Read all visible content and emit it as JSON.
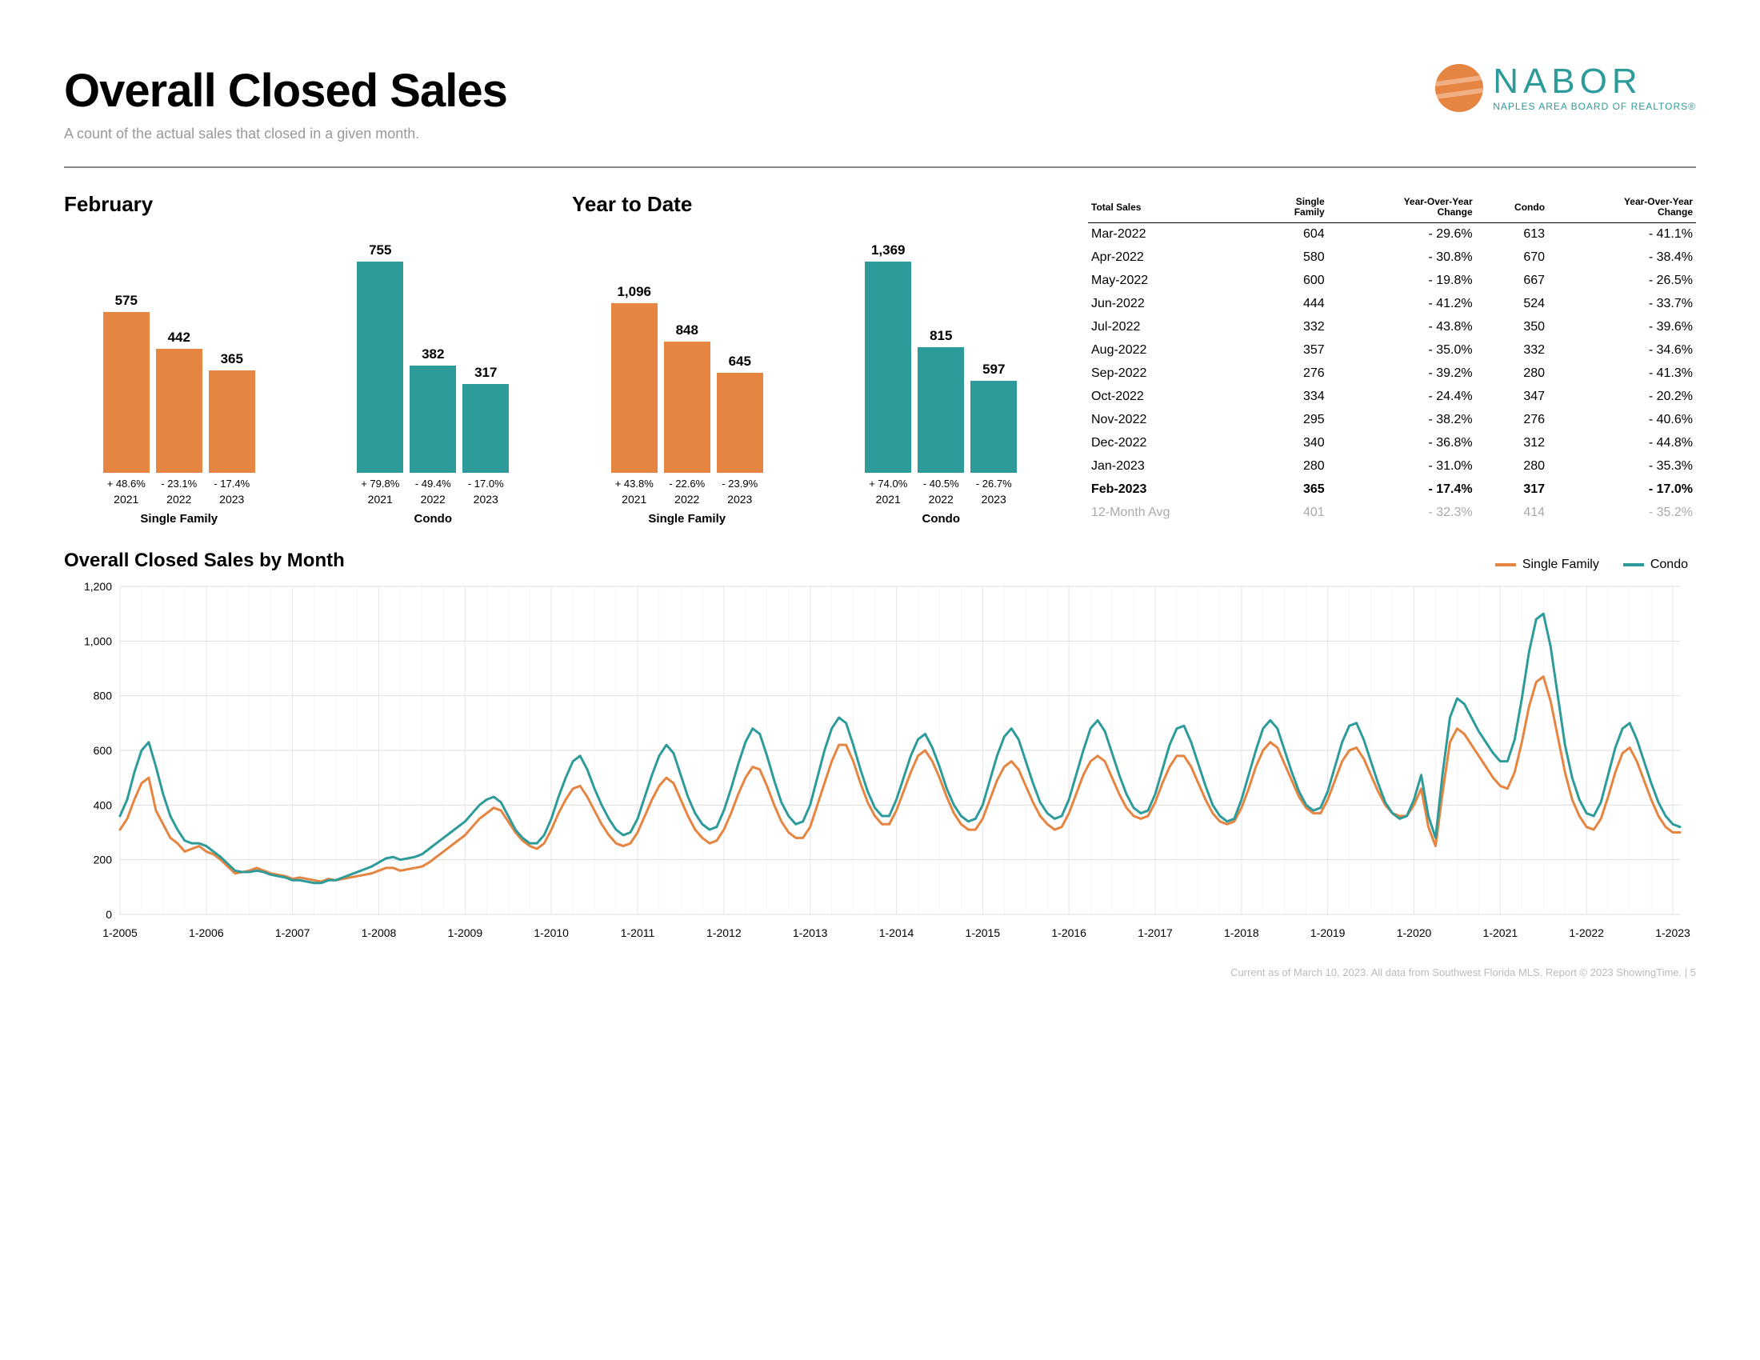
{
  "header": {
    "title": "Overall Closed Sales",
    "subtitle": "A count of the actual sales that closed in a given month.",
    "brand": "NABOR",
    "brand_sub": "NAPLES AREA BOARD OF REALTORS®",
    "brand_color": "#2E9B9B",
    "logo_color": "#E68541"
  },
  "colors": {
    "single_family": "#E68541",
    "condo": "#2E9B9B",
    "grid": "#dddddd",
    "text": "#000000"
  },
  "bar_panels": [
    {
      "title": "February",
      "max": 800,
      "groups": [
        {
          "label": "Single Family",
          "color": "#E68541",
          "bars": [
            {
              "year": "2021",
              "value": 575,
              "pct": "+ 48.6%"
            },
            {
              "year": "2022",
              "value": 442,
              "pct": "- 23.1%"
            },
            {
              "year": "2023",
              "value": 365,
              "pct": "- 17.4%"
            }
          ]
        },
        {
          "label": "Condo",
          "color": "#2E9B9B",
          "bars": [
            {
              "year": "2021",
              "value": 755,
              "pct": "+ 79.8%"
            },
            {
              "year": "2022",
              "value": 382,
              "pct": "- 49.4%"
            },
            {
              "year": "2023",
              "value": 317,
              "pct": "- 17.0%"
            }
          ]
        }
      ]
    },
    {
      "title": "Year to Date",
      "max": 1450,
      "groups": [
        {
          "label": "Single Family",
          "color": "#E68541",
          "bars": [
            {
              "year": "2021",
              "value": 1096,
              "pct": "+ 43.8%"
            },
            {
              "year": "2022",
              "value": 848,
              "pct": "- 22.6%"
            },
            {
              "year": "2023",
              "value": 645,
              "pct": "- 23.9%"
            }
          ]
        },
        {
          "label": "Condo",
          "color": "#2E9B9B",
          "bars": [
            {
              "year": "2021",
              "value": 1369,
              "pct": "+ 74.0%"
            },
            {
              "year": "2022",
              "value": 815,
              "pct": "- 40.5%"
            },
            {
              "year": "2023",
              "value": 597,
              "pct": "- 26.7%"
            }
          ]
        }
      ]
    }
  ],
  "table": {
    "headers": [
      "Total Sales",
      "Single\nFamily",
      "Year-Over-Year\nChange",
      "Condo",
      "Year-Over-Year\nChange"
    ],
    "rows": [
      [
        "Mar-2022",
        "604",
        "- 29.6%",
        "613",
        "- 41.1%"
      ],
      [
        "Apr-2022",
        "580",
        "- 30.8%",
        "670",
        "- 38.4%"
      ],
      [
        "May-2022",
        "600",
        "- 19.8%",
        "667",
        "- 26.5%"
      ],
      [
        "Jun-2022",
        "444",
        "- 41.2%",
        "524",
        "- 33.7%"
      ],
      [
        "Jul-2022",
        "332",
        "- 43.8%",
        "350",
        "- 39.6%"
      ],
      [
        "Aug-2022",
        "357",
        "- 35.0%",
        "332",
        "- 34.6%"
      ],
      [
        "Sep-2022",
        "276",
        "- 39.2%",
        "280",
        "- 41.3%"
      ],
      [
        "Oct-2022",
        "334",
        "- 24.4%",
        "347",
        "- 20.2%"
      ],
      [
        "Nov-2022",
        "295",
        "- 38.2%",
        "276",
        "- 40.6%"
      ],
      [
        "Dec-2022",
        "340",
        "- 36.8%",
        "312",
        "- 44.8%"
      ],
      [
        "Jan-2023",
        "280",
        "- 31.0%",
        "280",
        "- 35.3%"
      ]
    ],
    "bold_row": [
      "Feb-2023",
      "365",
      "- 17.4%",
      "317",
      "- 17.0%"
    ],
    "avg_row": [
      "12-Month Avg",
      "401",
      "- 32.3%",
      "414",
      "- 35.2%"
    ]
  },
  "line_chart": {
    "title": "Overall Closed Sales by Month",
    "legend": [
      {
        "label": "Single Family",
        "color": "#E68541"
      },
      {
        "label": "Condo",
        "color": "#2E9B9B"
      }
    ],
    "ymin": 0,
    "ymax": 1200,
    "ytick": 200,
    "x_labels": [
      "1-2005",
      "1-2006",
      "1-2007",
      "1-2008",
      "1-2009",
      "1-2010",
      "1-2011",
      "1-2012",
      "1-2013",
      "1-2014",
      "1-2015",
      "1-2016",
      "1-2017",
      "1-2018",
      "1-2019",
      "1-2020",
      "1-2021",
      "1-2022",
      "1-2023"
    ],
    "stroke_width": 3,
    "series": {
      "single_family": [
        310,
        350,
        420,
        480,
        500,
        380,
        330,
        280,
        260,
        230,
        240,
        250,
        230,
        220,
        200,
        175,
        150,
        155,
        160,
        170,
        160,
        150,
        145,
        140,
        130,
        135,
        130,
        125,
        120,
        130,
        125,
        130,
        135,
        140,
        145,
        150,
        160,
        170,
        170,
        160,
        165,
        170,
        175,
        190,
        210,
        230,
        250,
        270,
        290,
        320,
        350,
        370,
        390,
        380,
        340,
        300,
        270,
        250,
        240,
        260,
        310,
        370,
        420,
        460,
        470,
        430,
        380,
        330,
        290,
        260,
        250,
        260,
        300,
        360,
        420,
        470,
        500,
        480,
        420,
        360,
        310,
        280,
        260,
        270,
        310,
        370,
        440,
        500,
        540,
        530,
        470,
        400,
        340,
        300,
        280,
        280,
        320,
        400,
        480,
        560,
        620,
        620,
        560,
        480,
        410,
        360,
        330,
        330,
        380,
        450,
        520,
        580,
        600,
        560,
        500,
        430,
        370,
        330,
        310,
        310,
        350,
        420,
        490,
        540,
        560,
        530,
        470,
        410,
        360,
        330,
        310,
        320,
        370,
        440,
        510,
        560,
        580,
        560,
        500,
        440,
        390,
        360,
        350,
        360,
        410,
        480,
        540,
        580,
        580,
        540,
        480,
        420,
        370,
        340,
        330,
        340,
        390,
        460,
        540,
        600,
        630,
        610,
        550,
        490,
        430,
        390,
        370,
        370,
        420,
        490,
        560,
        600,
        610,
        570,
        510,
        450,
        400,
        370,
        360,
        360,
        400,
        460,
        320,
        250,
        450,
        630,
        680,
        660,
        620,
        580,
        540,
        500,
        470,
        460,
        520,
        630,
        760,
        850,
        870,
        780,
        650,
        520,
        420,
        360,
        320,
        310,
        350,
        430,
        520,
        590,
        610,
        560,
        490,
        420,
        360,
        320,
        300,
        300
      ],
      "condo": [
        360,
        420,
        520,
        600,
        630,
        540,
        440,
        360,
        310,
        270,
        260,
        260,
        250,
        230,
        210,
        185,
        160,
        155,
        155,
        160,
        155,
        145,
        140,
        135,
        125,
        125,
        120,
        115,
        115,
        125,
        125,
        135,
        145,
        155,
        165,
        175,
        190,
        205,
        210,
        200,
        205,
        210,
        220,
        240,
        260,
        280,
        300,
        320,
        340,
        370,
        400,
        420,
        430,
        410,
        360,
        310,
        280,
        260,
        260,
        290,
        350,
        430,
        500,
        560,
        580,
        530,
        460,
        400,
        350,
        310,
        290,
        300,
        350,
        430,
        510,
        580,
        620,
        590,
        510,
        430,
        370,
        330,
        310,
        320,
        380,
        460,
        550,
        630,
        680,
        660,
        580,
        490,
        410,
        360,
        330,
        340,
        400,
        500,
        600,
        680,
        720,
        700,
        620,
        530,
        450,
        390,
        360,
        360,
        420,
        500,
        580,
        640,
        660,
        610,
        540,
        460,
        400,
        360,
        340,
        350,
        400,
        490,
        580,
        650,
        680,
        640,
        560,
        480,
        410,
        370,
        350,
        360,
        420,
        510,
        600,
        680,
        710,
        670,
        590,
        510,
        440,
        390,
        370,
        380,
        440,
        530,
        620,
        680,
        690,
        630,
        550,
        470,
        400,
        360,
        340,
        350,
        420,
        510,
        600,
        680,
        710,
        680,
        600,
        520,
        450,
        400,
        380,
        390,
        450,
        540,
        630,
        690,
        700,
        640,
        560,
        480,
        410,
        370,
        350,
        360,
        420,
        510,
        360,
        280,
        520,
        720,
        790,
        770,
        720,
        670,
        630,
        590,
        560,
        560,
        640,
        790,
        960,
        1080,
        1100,
        980,
        800,
        620,
        500,
        420,
        370,
        360,
        410,
        510,
        610,
        680,
        700,
        640,
        560,
        480,
        410,
        360,
        330,
        320
      ]
    }
  },
  "footer": "Current as of March 10, 2023. All data from Southwest Florida MLS. Report © 2023 ShowingTime.  |  5"
}
